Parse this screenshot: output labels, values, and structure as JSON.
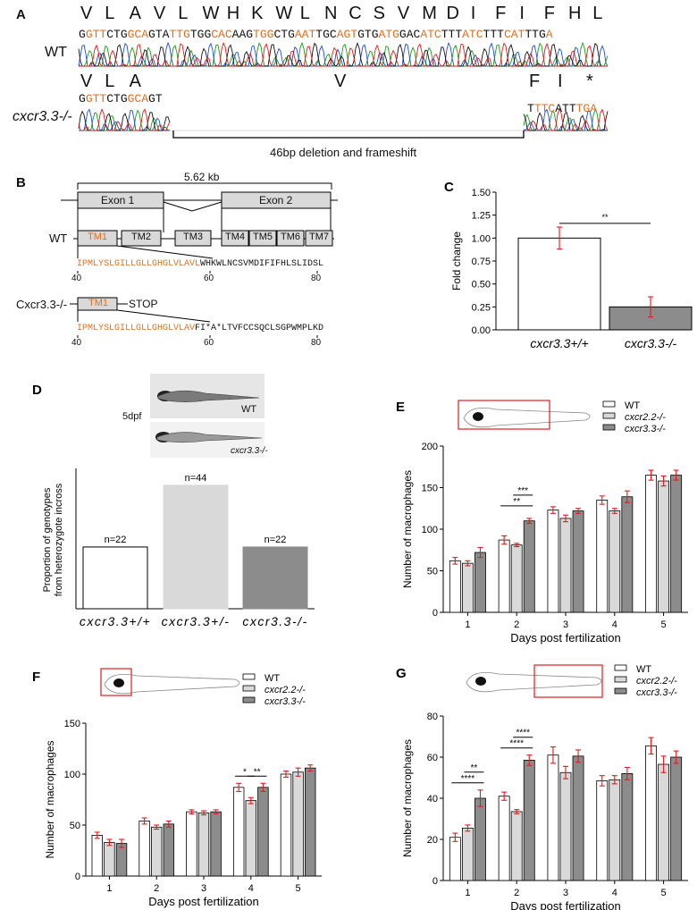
{
  "panels": {
    "A": {
      "label": "A",
      "wt_label": "WT",
      "mut_label": "cxcr3.3-/-",
      "wt_aa": [
        "V",
        "L",
        "A",
        "V",
        "L",
        "W",
        "H",
        "K",
        "W",
        "L",
        "N",
        "C",
        "S",
        "V",
        "M",
        "D",
        "I",
        "F",
        "I",
        "F",
        "H",
        "L"
      ],
      "wt_seq": [
        {
          "t": "G",
          "o": false
        },
        {
          "t": "GTT",
          "o": true
        },
        {
          "t": "CTG",
          "o": false
        },
        {
          "t": "GCA",
          "o": true
        },
        {
          "t": "GTA",
          "o": false
        },
        {
          "t": "TTG",
          "o": true
        },
        {
          "t": "TGG",
          "o": false
        },
        {
          "t": "CAC",
          "o": true
        },
        {
          "t": "AAG",
          "o": false
        },
        {
          "t": "TGG",
          "o": true
        },
        {
          "t": "CTG",
          "o": false
        },
        {
          "t": "AAT",
          "o": true
        },
        {
          "t": "TGC",
          "o": false
        },
        {
          "t": "AGT",
          "o": true
        },
        {
          "t": "GTG",
          "o": false
        },
        {
          "t": "ATG",
          "o": true
        },
        {
          "t": "GAC",
          "o": false
        },
        {
          "t": "ATC",
          "o": true
        },
        {
          "t": "TTT",
          "o": false
        },
        {
          "t": "ATC",
          "o": true
        },
        {
          "t": "TTT",
          "o": false
        },
        {
          "t": "CAT",
          "o": true
        },
        {
          "t": "TTG",
          "o": false
        },
        {
          "t": "A",
          "o": true
        }
      ],
      "mut_aa_left": [
        "V",
        "L",
        "A"
      ],
      "mut_aa_mid": "V",
      "mut_aa_right": [
        "F",
        "I",
        "*"
      ],
      "mut_seq_left": [
        {
          "t": "G",
          "o": false
        },
        {
          "t": "GTT",
          "o": true
        },
        {
          "t": "CTG",
          "o": false
        },
        {
          "t": "GCA",
          "o": true
        },
        {
          "t": "GT",
          "o": false
        }
      ],
      "mut_seq_right": [
        {
          "t": "T",
          "o": false
        },
        {
          "t": "TTC",
          "o": true
        },
        {
          "t": "ATT",
          "o": false
        },
        {
          "t": "TGA",
          "o": true
        }
      ],
      "deletion_label": "46bp deletion and frameshift"
    },
    "B": {
      "label": "B",
      "size_label": "5.62 kb",
      "exon1": "Exon 1",
      "exon2": "Exon 2",
      "wt_label": "WT",
      "tm_domains": [
        "TM1",
        "TM2",
        "TM3",
        "TM4",
        "TM5",
        "TM6",
        "TM7"
      ],
      "wt_seq_orange": "IPMLYSLGILLGLLGHGLVLAVL",
      "wt_seq_black": "WHKWLNCSVMDIFIFHLSLIDSL",
      "wt_ticks": [
        "40",
        "60",
        "80"
      ],
      "mut_label": "Cxcr3.3-/-",
      "mut_tm": "TM1",
      "mut_stop": "STOP",
      "mut_seq_orange": "IPMLYSLGILLGLLGHGLVLAV",
      "mut_seq_black": "FI*A*LTVFCCSQCLSGPWMPLKD",
      "mut_ticks": [
        "40",
        "60",
        "80"
      ]
    },
    "D_images": {
      "stage": "5dpf",
      "wt": "WT",
      "mut": "cxcr3.3-/-"
    }
  },
  "colors": {
    "orange": "#e0701e",
    "red": "#e31a1c",
    "white_bar": "#ffffff",
    "light_gray": "#d9d9d9",
    "dark_gray": "#8c8c8c",
    "wt_fill": "#ffffff"
  },
  "chart_data": [
    {
      "id": "C",
      "panel_label": "C",
      "type": "bar",
      "categories": [
        "cxcr3.3+/+",
        "cxcr3.3-/-"
      ],
      "values": [
        1.0,
        0.25
      ],
      "errors": [
        0.12,
        0.11
      ],
      "ylabel": "Fold change",
      "xlabel": "",
      "ylim": [
        0,
        1.5
      ],
      "yticks": [
        "0.00",
        "0.25",
        "0.50",
        "0.75",
        "1.00",
        "1.25",
        "1.50"
      ],
      "significance": [
        {
          "pair": [
            0,
            1
          ],
          "label": "**"
        }
      ]
    },
    {
      "id": "D",
      "panel_label": "D",
      "type": "bar",
      "categories": [
        "cxcr3.3+/+",
        "cxcr3.3+/-",
        "cxcr3.3-/-"
      ],
      "values": [
        22,
        44,
        22
      ],
      "bar_labels": [
        "n=22",
        "n=44",
        "n=22"
      ],
      "ylabel": "Proportion of genotypes from heterozygote incross",
      "xlabel": "",
      "ylim": [
        0,
        50
      ]
    },
    {
      "id": "E",
      "panel_label": "E",
      "type": "bar",
      "categories": [
        "1",
        "2",
        "3",
        "4",
        "5"
      ],
      "series": [
        {
          "name": "WT",
          "values": [
            62,
            87,
            123,
            135,
            165
          ],
          "errors": [
            4,
            5,
            4,
            5,
            6
          ]
        },
        {
          "name": "cxcr2.2-/-",
          "values": [
            59,
            81,
            113,
            122,
            158
          ],
          "errors": [
            3,
            2,
            4,
            3,
            6
          ]
        },
        {
          "name": "cxcr3.3-/-",
          "values": [
            72,
            110,
            122,
            139,
            165
          ],
          "errors": [
            6,
            3,
            3,
            7,
            6
          ]
        }
      ],
      "xlabel": "Days post fertilization",
      "ylabel": "Number of macrophages",
      "ylim": [
        0,
        200
      ],
      "yticks": [
        "0",
        "50",
        "100",
        "150",
        "200"
      ],
      "significance": [
        {
          "day": 1,
          "from": 0,
          "to": 2,
          "label": "**",
          "level": 0
        },
        {
          "day": 1,
          "from": 1,
          "to": 2,
          "label": "***",
          "level": 1
        }
      ]
    },
    {
      "id": "F",
      "panel_label": "F",
      "type": "bar",
      "categories": [
        "1",
        "2",
        "3",
        "4",
        "5"
      ],
      "series": [
        {
          "name": "WT",
          "values": [
            40,
            54,
            63,
            87,
            100
          ],
          "errors": [
            3,
            3,
            2,
            4,
            3
          ]
        },
        {
          "name": "cxcr2.2-/-",
          "values": [
            33,
            48,
            62,
            74,
            102
          ],
          "errors": [
            3,
            2,
            2,
            3,
            4
          ]
        },
        {
          "name": "cxcr3.3-/-",
          "values": [
            32,
            51,
            63,
            87,
            106
          ],
          "errors": [
            4,
            3,
            2,
            4,
            3
          ]
        }
      ],
      "xlabel": "Days post fertilization",
      "ylabel": "Number of macrophages",
      "ylim": [
        0,
        150
      ],
      "yticks": [
        "0",
        "50",
        "100",
        "150"
      ],
      "significance": [
        {
          "day": 3,
          "from": 0,
          "to": 1,
          "label": "*",
          "level": 0
        },
        {
          "day": 3,
          "from": 1,
          "to": 2,
          "label": "**",
          "level": 0
        }
      ]
    },
    {
      "id": "G",
      "panel_label": "G",
      "type": "bar",
      "categories": [
        "1",
        "2",
        "3",
        "4",
        "5"
      ],
      "series": [
        {
          "name": "WT",
          "values": [
            21,
            41,
            61,
            48.5,
            65.5
          ],
          "errors": [
            2,
            2,
            4,
            2.5,
            4
          ]
        },
        {
          "name": "cxcr2.2-/-",
          "values": [
            25.5,
            33.5,
            52.5,
            49,
            56.5
          ],
          "errors": [
            1.5,
            1,
            3,
            2,
            4
          ]
        },
        {
          "name": "cxcr3.3-/-",
          "values": [
            40,
            58.5,
            60.5,
            52,
            60
          ],
          "errors": [
            4,
            2.5,
            3,
            3,
            3
          ]
        }
      ],
      "xlabel": "Days post fertilization",
      "ylabel": "Number of macrophages",
      "ylim": [
        0,
        80
      ],
      "yticks": [
        "0",
        "20",
        "40",
        "60",
        "80"
      ],
      "significance": [
        {
          "day": 0,
          "from": 0,
          "to": 2,
          "label": "****",
          "level": 0
        },
        {
          "day": 0,
          "from": 1,
          "to": 2,
          "label": "**",
          "level": 1
        },
        {
          "day": 1,
          "from": 0,
          "to": 2,
          "label": "****",
          "level": 0
        },
        {
          "day": 1,
          "from": 1,
          "to": 2,
          "label": "****",
          "level": 1
        }
      ]
    }
  ]
}
